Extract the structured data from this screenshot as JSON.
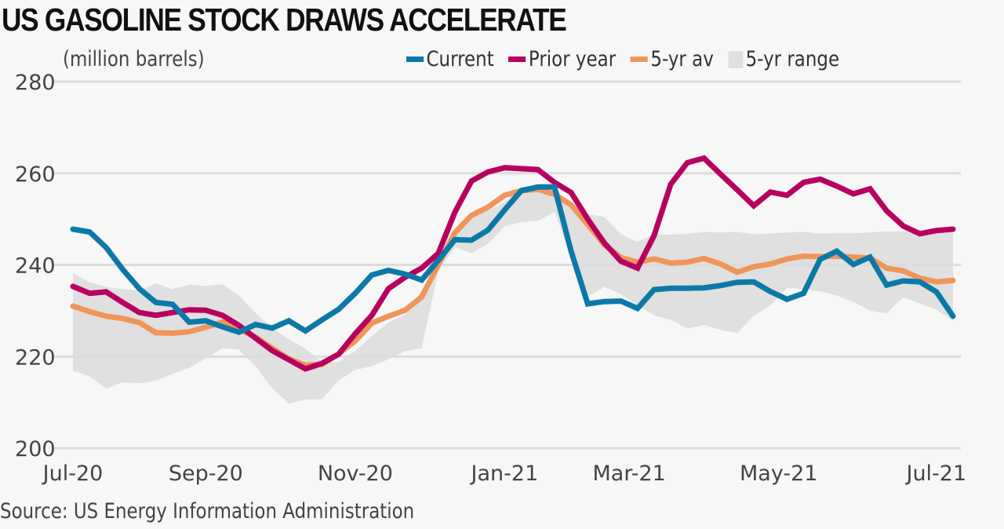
{
  "chart_data": {
    "type": "line",
    "title": "US GASOLINE STOCK DRAWS ACCELERATE",
    "ylabel": "(million barrels)",
    "xlabel": "",
    "ylim": [
      200,
      280
    ],
    "yticks": [
      200,
      220,
      240,
      260,
      280
    ],
    "xtick_labels": [
      "Jul-20",
      "Sep-20",
      "Nov-20",
      "Jan-21",
      "Mar-21",
      "May-21",
      "Jul-21"
    ],
    "xtick_index": [
      0,
      8,
      17,
      26,
      33.5,
      42.5,
      52
    ],
    "grid": true,
    "legend_position": "top-right",
    "source": "Source: US Energy Information Administration",
    "colors": {
      "current": "#0b79a8",
      "prior_year": "#b7005f",
      "avg": "#f0955a",
      "range": "#e0e0e0",
      "grid": "#dcdcdc"
    },
    "series": [
      {
        "name": "Current",
        "key": "current",
        "values": [
          247.8,
          247.2,
          243.8,
          239.0,
          234.8,
          231.8,
          231.4,
          227.5,
          227.8,
          226.5,
          225.3,
          227.0,
          226.2,
          227.8,
          225.6,
          228.0,
          230.3,
          233.8,
          237.8,
          238.8,
          238.0,
          236.7,
          241.0,
          245.5,
          245.4,
          247.6,
          252.0,
          256.2,
          257.0,
          257.0,
          243.0,
          231.5,
          232.0,
          232.1,
          230.5,
          234.6,
          234.9,
          234.9,
          235.0,
          235.5,
          236.2,
          236.3,
          234.2,
          232.5,
          233.8,
          241.2,
          243.0,
          240.1,
          241.7,
          235.6,
          236.5,
          236.3,
          234.1,
          228.8
        ]
      },
      {
        "name": "Prior year",
        "key": "prior_year",
        "values": [
          235.3,
          233.8,
          234.1,
          231.8,
          229.6,
          229.0,
          229.6,
          230.2,
          230.1,
          229.0,
          226.8,
          224.0,
          221.3,
          219.3,
          217.3,
          218.5,
          220.5,
          225.0,
          229.0,
          234.8,
          237.3,
          239.3,
          242.5,
          251.5,
          258.3,
          260.3,
          261.2,
          261.0,
          260.8,
          258.0,
          255.8,
          250.0,
          244.8,
          240.8,
          239.3,
          246.4,
          257.6,
          262.3,
          263.3,
          259.8,
          256.4,
          252.9,
          255.9,
          255.2,
          258.0,
          258.7,
          257.2,
          255.5,
          256.6,
          251.8,
          248.5,
          246.8,
          247.5,
          247.8
        ]
      },
      {
        "name": "5-yr av",
        "key": "avg",
        "values": [
          231.0,
          229.8,
          228.8,
          228.3,
          227.4,
          225.2,
          225.1,
          225.4,
          226.4,
          227.5,
          226.0,
          224.2,
          221.8,
          219.5,
          218.1,
          218.3,
          220.6,
          223.4,
          227.3,
          228.8,
          230.1,
          233.0,
          240.0,
          247.0,
          250.8,
          252.6,
          255.2,
          256.2,
          256.5,
          255.4,
          253.1,
          248.8,
          244.4,
          241.6,
          240.6,
          241.3,
          240.4,
          240.6,
          241.4,
          240.2,
          238.4,
          239.6,
          240.2,
          241.3,
          241.9,
          241.8,
          241.9,
          241.7,
          241.5,
          239.3,
          238.7,
          237.1,
          236.3,
          236.6
        ]
      }
    ],
    "range_band": {
      "name": "5-yr range",
      "key": "range",
      "upper": [
        238.3,
        236.2,
        235.2,
        234.7,
        234.4,
        236.0,
        234.7,
        235.7,
        235.4,
        235.8,
        233.3,
        229.5,
        226.2,
        223.8,
        221.7,
        218.9,
        218.8,
        221.2,
        224.5,
        227.4,
        229.2,
        232.4,
        238.9,
        247.2,
        251.3,
        251.9,
        253.7,
        257.0,
        257.3,
        256.8,
        253.1,
        251.0,
        250.5,
        246.7,
        245.0,
        246.7,
        246.6,
        246.8,
        247.2,
        247.1,
        247.2,
        246.7,
        246.8,
        247.1,
        247.2,
        246.8,
        246.9,
        246.9,
        247.1,
        247.3,
        247.3,
        247.4,
        247.5,
        247.6
      ],
      "lower": [
        216.9,
        215.7,
        213.0,
        214.4,
        214.2,
        214.7,
        216.2,
        217.5,
        219.6,
        221.8,
        221.5,
        217.8,
        213.1,
        209.7,
        210.6,
        210.7,
        214.8,
        217.1,
        217.9,
        219.4,
        221.2,
        221.8,
        238.6,
        243.8,
        242.5,
        244.6,
        248.4,
        249.4,
        249.6,
        251.6,
        241.9,
        233.0,
        235.2,
        233.6,
        231.2,
        229.0,
        228.0,
        226.1,
        226.9,
        225.8,
        225.1,
        228.9,
        231.2,
        235.0,
        234.7,
        234.2,
        233.3,
        231.9,
        230.0,
        229.4,
        232.9,
        231.6,
        230.2,
        227.8
      ]
    }
  },
  "legend": {
    "items": [
      {
        "label": "Current"
      },
      {
        "label": "Prior year"
      },
      {
        "label": "5-yr av"
      },
      {
        "label": "5-yr range"
      }
    ]
  }
}
